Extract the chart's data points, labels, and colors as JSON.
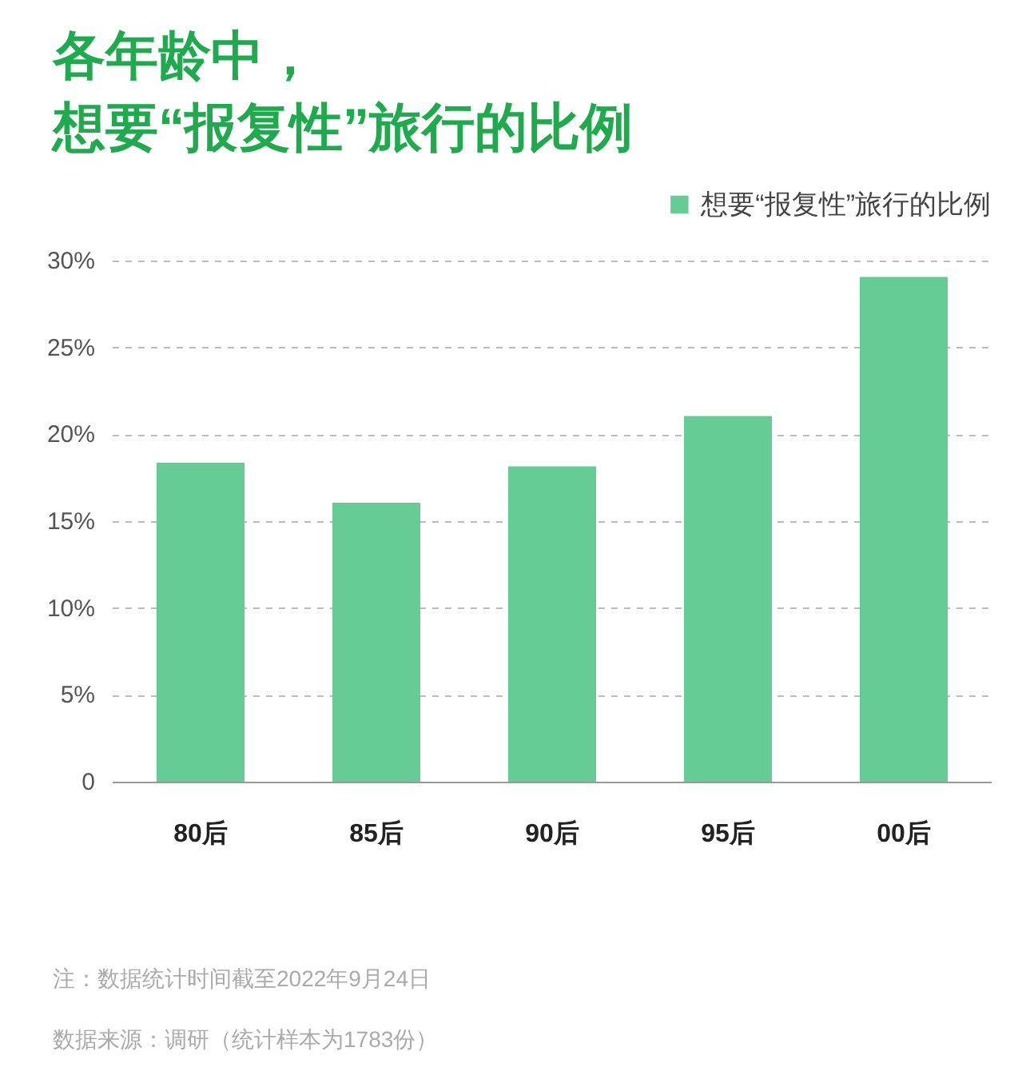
{
  "chart_data": {
    "type": "bar",
    "title": "各年龄中，想要“报复性”旅行的比例",
    "categories": [
      "80后",
      "85后",
      "90后",
      "95后",
      "00后"
    ],
    "series": [
      {
        "name": "想要“报复性”旅行的比例",
        "color": "#66cc96",
        "values": [
          18.4,
          16.1,
          18.2,
          21.1,
          29.1
        ]
      }
    ],
    "ylim": [
      0,
      30
    ],
    "yticks": [
      0,
      {
        "value": 5,
        "label": "5%"
      },
      {
        "value": 10,
        "label": "10%"
      },
      {
        "value": 15,
        "label": "15%"
      },
      {
        "value": 20,
        "label": "20%"
      },
      {
        "value": 25,
        "label": "25%"
      },
      {
        "value": 30,
        "label": "30%"
      }
    ],
    "grid": "y",
    "legend": "top right",
    "annotations": [
      "注：数据统计时间截至2022年9月24日",
      "数据来源：调研（统计样本为1783份）"
    ]
  }
}
